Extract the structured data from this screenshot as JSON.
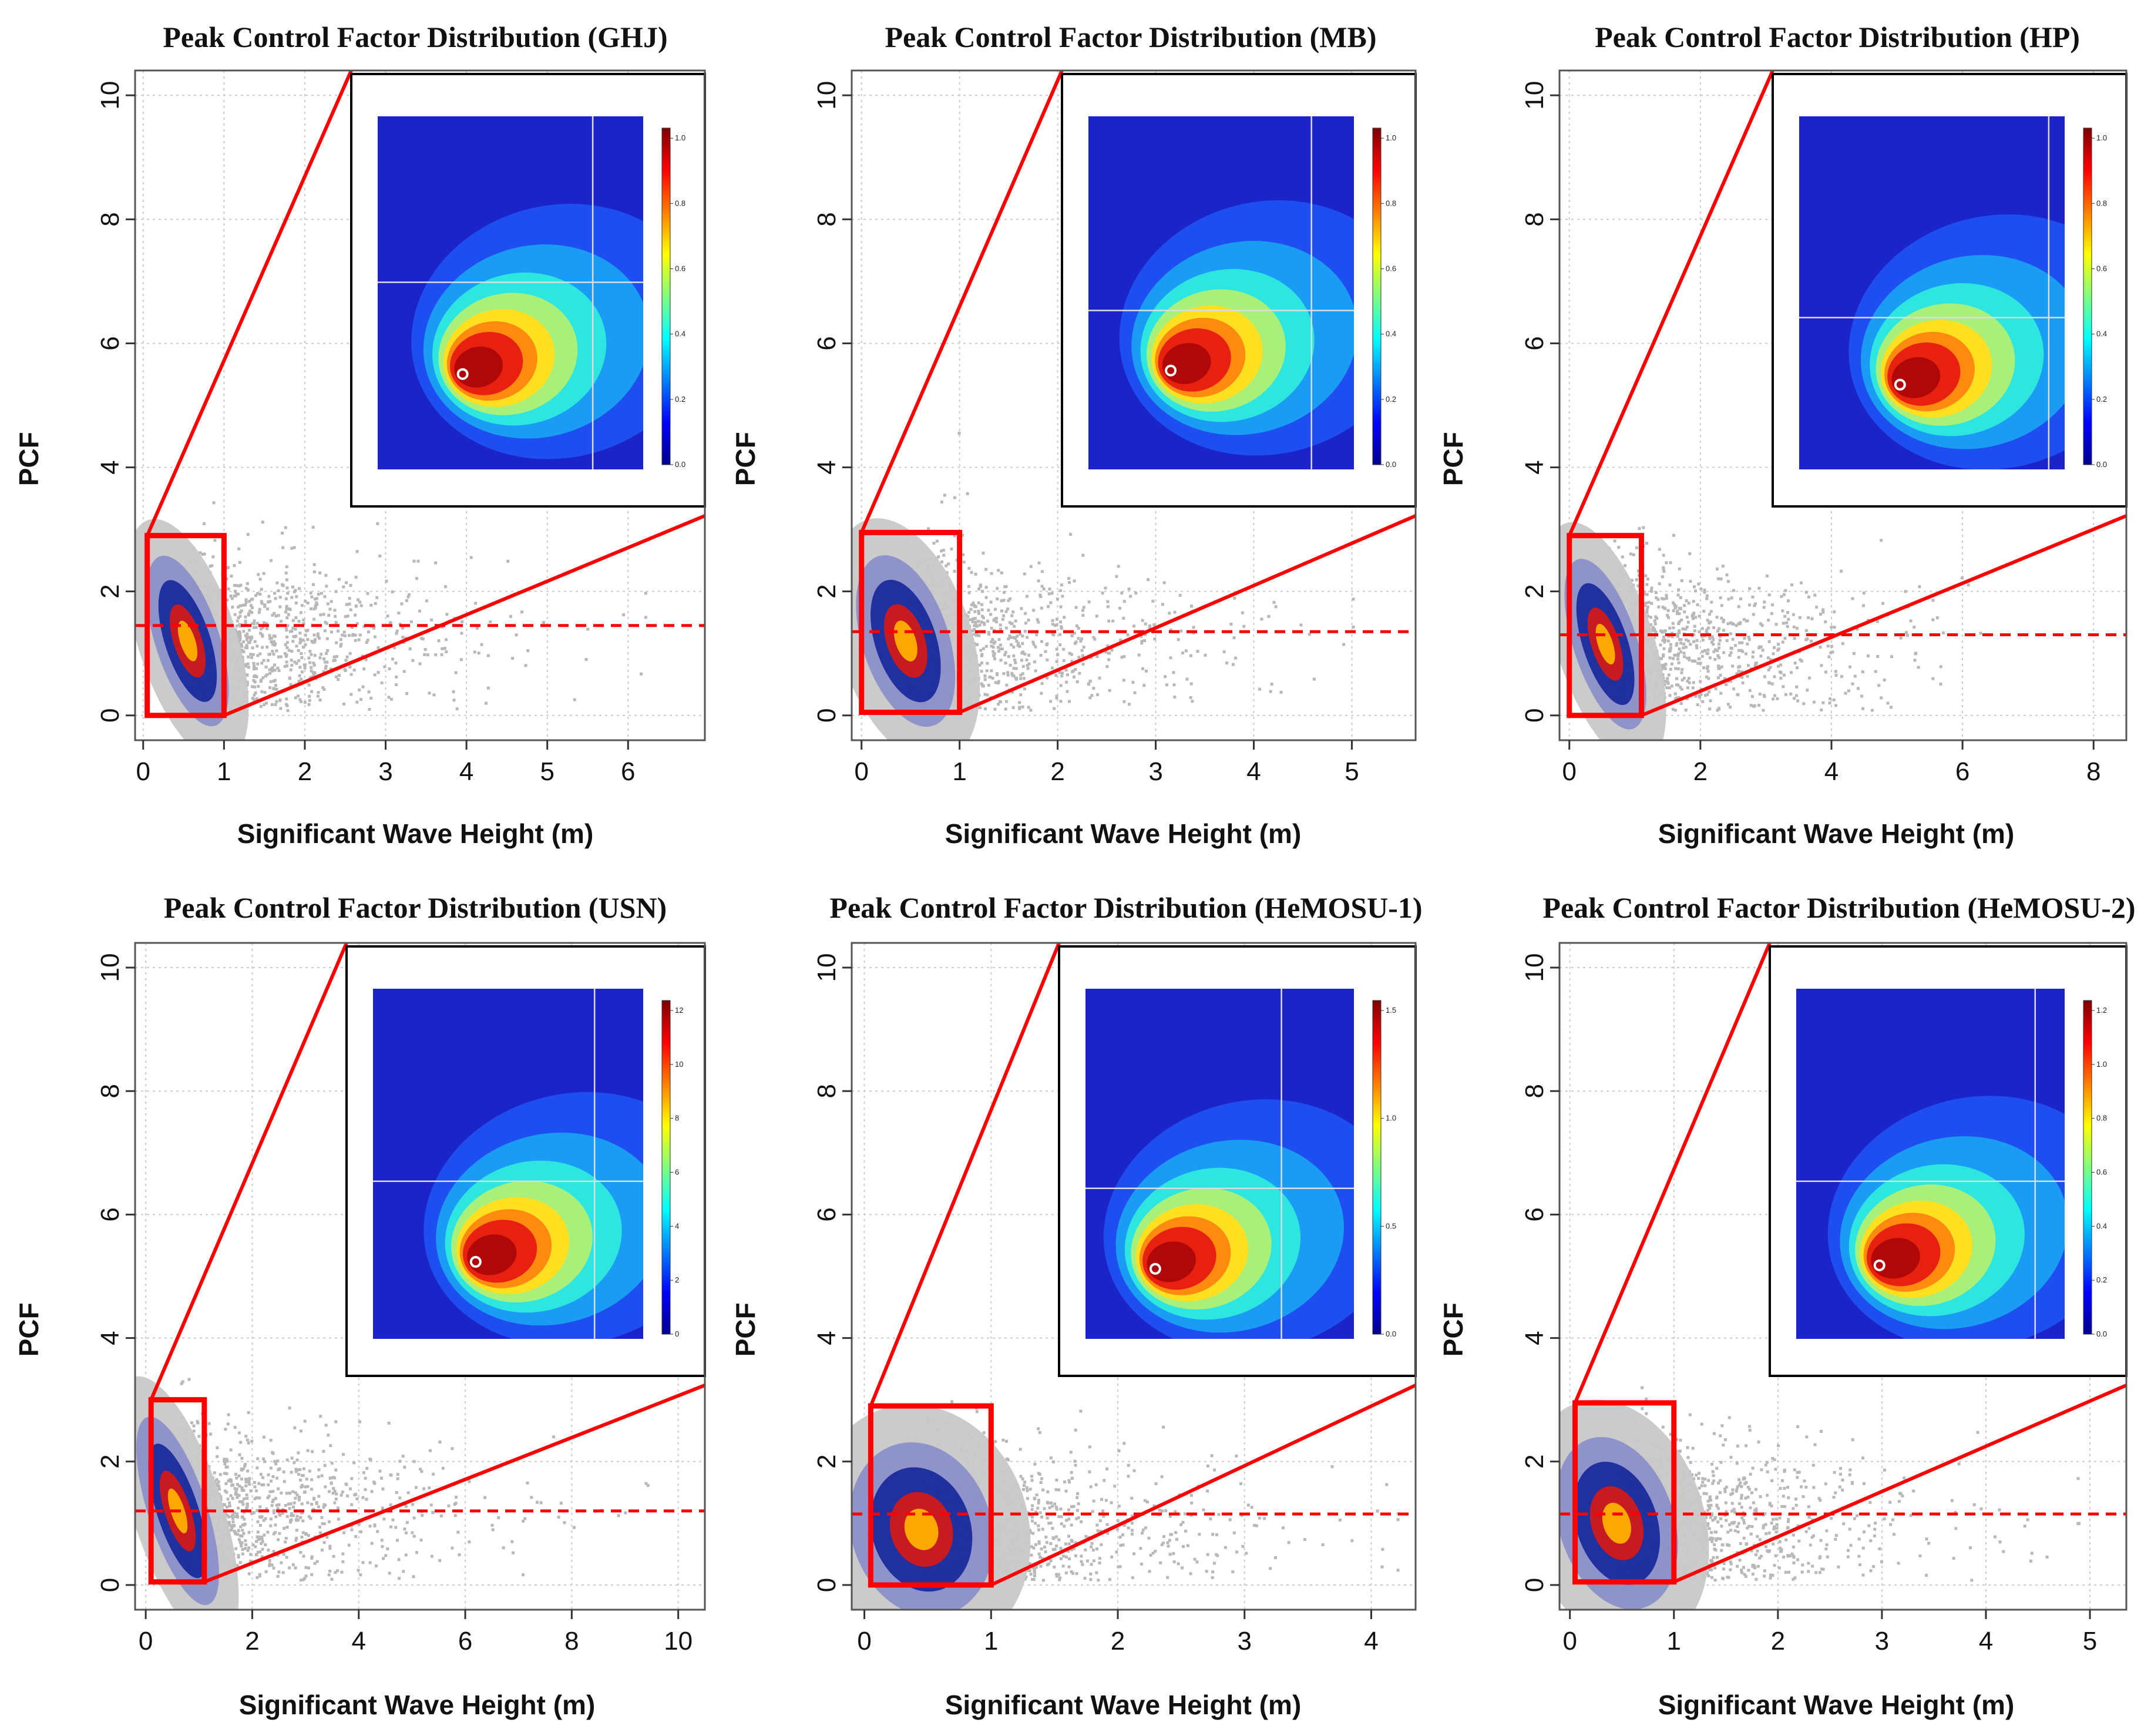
{
  "chart_data": [
    {
      "type": "scatter",
      "title": "Peak Control Factor Distribution  (GHJ)",
      "xlabel": "Significant Wave Height (m)",
      "ylabel": "PCF",
      "xlim": [
        -0.1,
        6.95
      ],
      "ylim": [
        -0.4,
        10.4
      ],
      "xticks": [
        0,
        1,
        2,
        3,
        4,
        5,
        6
      ],
      "yticks": [
        0,
        2,
        4,
        6,
        8,
        10
      ],
      "reference_line_y": 1.45,
      "zoom_box": {
        "x": [
          0.05,
          1.0
        ],
        "y": [
          0,
          2.9
        ]
      },
      "density_center": {
        "x": 0.55,
        "y": 1.2
      },
      "density_spread": {
        "sx": 0.18,
        "sy": 0.45
      },
      "scatter_max_x": 6.2,
      "inset_crosshair": {
        "x": 0.81,
        "y": 0.47
      },
      "inset_peak": {
        "x": 0.32,
        "y": 0.73
      },
      "colorbar_ticks": [
        "0.0",
        "0.2",
        "0.4",
        "0.6",
        "0.8",
        "1.0"
      ],
      "grid": true
    },
    {
      "type": "scatter",
      "title": "Peak Control Factor Distribution  (MB)",
      "xlabel": "Significant Wave Height (m)",
      "ylabel": "PCF",
      "xlim": [
        -0.1,
        5.65
      ],
      "ylim": [
        -0.4,
        10.4
      ],
      "xticks": [
        0,
        1,
        2,
        3,
        4,
        5
      ],
      "yticks": [
        0,
        2,
        4,
        6,
        8,
        10
      ],
      "reference_line_y": 1.35,
      "zoom_box": {
        "x": [
          0,
          1.0
        ],
        "y": [
          0.05,
          2.95
        ]
      },
      "density_center": {
        "x": 0.45,
        "y": 1.2
      },
      "density_spread": {
        "sx": 0.2,
        "sy": 0.45
      },
      "scatter_max_x": 5.0,
      "inset_crosshair": {
        "x": 0.84,
        "y": 0.55
      },
      "inset_peak": {
        "x": 0.31,
        "y": 0.72
      },
      "colorbar_ticks": [
        "0.0",
        "0.2",
        "0.4",
        "0.6",
        "0.8",
        "1.0"
      ],
      "grid": true
    },
    {
      "type": "scatter",
      "title": "Peak Control Factor Distribution  (HP)",
      "xlabel": "Significant Wave Height (m)",
      "ylabel": "PCF",
      "xlim": [
        -0.15,
        8.5
      ],
      "ylim": [
        -0.4,
        10.4
      ],
      "xticks": [
        0,
        2,
        4,
        6,
        8
      ],
      "yticks": [
        0,
        2,
        4,
        6,
        8,
        10
      ],
      "reference_line_y": 1.3,
      "zoom_box": {
        "x": [
          0,
          1.1
        ],
        "y": [
          0,
          2.9
        ]
      },
      "density_center": {
        "x": 0.55,
        "y": 1.15
      },
      "density_spread": {
        "sx": 0.22,
        "sy": 0.45
      },
      "scatter_max_x": 7.0,
      "inset_crosshair": {
        "x": 0.94,
        "y": 0.57
      },
      "inset_peak": {
        "x": 0.38,
        "y": 0.76
      },
      "colorbar_ticks": [
        "0.0",
        "0.2",
        "0.4",
        "0.6",
        "0.8",
        "1.0"
      ],
      "grid": true
    },
    {
      "type": "scatter",
      "title": "Peak Control Factor Distribution  (USN)",
      "xlabel": "Significant Wave Height (m)",
      "ylabel": "PCF",
      "xlim": [
        -0.2,
        10.5
      ],
      "ylim": [
        -0.4,
        10.4
      ],
      "xticks": [
        0,
        2,
        4,
        6,
        8,
        10
      ],
      "yticks": [
        0,
        2,
        4,
        6,
        8,
        10
      ],
      "reference_line_y": 1.2,
      "zoom_box": {
        "x": [
          0.1,
          1.1
        ],
        "y": [
          0.05,
          3.0
        ]
      },
      "density_center": {
        "x": 0.6,
        "y": 1.2
      },
      "density_spread": {
        "sx": 0.25,
        "sy": 0.5
      },
      "scatter_max_x": 9.5,
      "inset_crosshair": {
        "x": 0.82,
        "y": 0.55
      },
      "inset_peak": {
        "x": 0.38,
        "y": 0.78
      },
      "colorbar_ticks": [
        "0",
        "2",
        "4",
        "6",
        "8",
        "10",
        "12"
      ],
      "grid": true
    },
    {
      "type": "scatter",
      "title": "Peak Control Factor Distribution  (HeMOSU-1)",
      "xlabel": "Significant Wave Height (m)",
      "ylabel": "PCF",
      "xlim": [
        -0.1,
        4.35
      ],
      "ylim": [
        -0.4,
        10.4
      ],
      "xticks": [
        0,
        1,
        2,
        3,
        4
      ],
      "yticks": [
        0,
        2,
        4,
        6,
        8,
        10
      ],
      "reference_line_y": 1.15,
      "zoom_box": {
        "x": [
          0.05,
          1.0
        ],
        "y": [
          0,
          2.9
        ]
      },
      "density_center": {
        "x": 0.45,
        "y": 0.9
      },
      "density_spread": {
        "sx": 0.25,
        "sy": 0.45
      },
      "scatter_max_x": 4.2,
      "inset_crosshair": {
        "x": 0.73,
        "y": 0.57
      },
      "inset_peak": {
        "x": 0.26,
        "y": 0.8
      },
      "colorbar_ticks": [
        "0.0",
        "0.5",
        "1.0",
        "1.5"
      ],
      "grid": true
    },
    {
      "type": "scatter",
      "title": "Peak Control Factor Distribution  (HeMOSU-2)",
      "xlabel": "Significant Wave Height (m)",
      "ylabel": "PCF",
      "xlim": [
        -0.1,
        5.35
      ],
      "ylim": [
        -0.4,
        10.4
      ],
      "xticks": [
        0,
        1,
        2,
        3,
        4,
        5
      ],
      "yticks": [
        0,
        2,
        4,
        6,
        8,
        10
      ],
      "reference_line_y": 1.15,
      "zoom_box": {
        "x": [
          0.05,
          1.0
        ],
        "y": [
          0.05,
          2.95
        ]
      },
      "density_center": {
        "x": 0.45,
        "y": 1.0
      },
      "density_spread": {
        "sx": 0.25,
        "sy": 0.45
      },
      "scatter_max_x": 5.0,
      "inset_crosshair": {
        "x": 0.89,
        "y": 0.55
      },
      "inset_peak": {
        "x": 0.31,
        "y": 0.79
      },
      "colorbar_ticks": [
        "0.0",
        "0.2",
        "0.4",
        "0.6",
        "0.8",
        "1.0",
        "1.2"
      ],
      "grid": true
    }
  ],
  "colors": {
    "scatter": "#b8b8b8",
    "reference_line": "#ff0000",
    "zoom_box": "#ff0000",
    "grid": "#cccccc",
    "inset_marker": "#ffffff"
  }
}
